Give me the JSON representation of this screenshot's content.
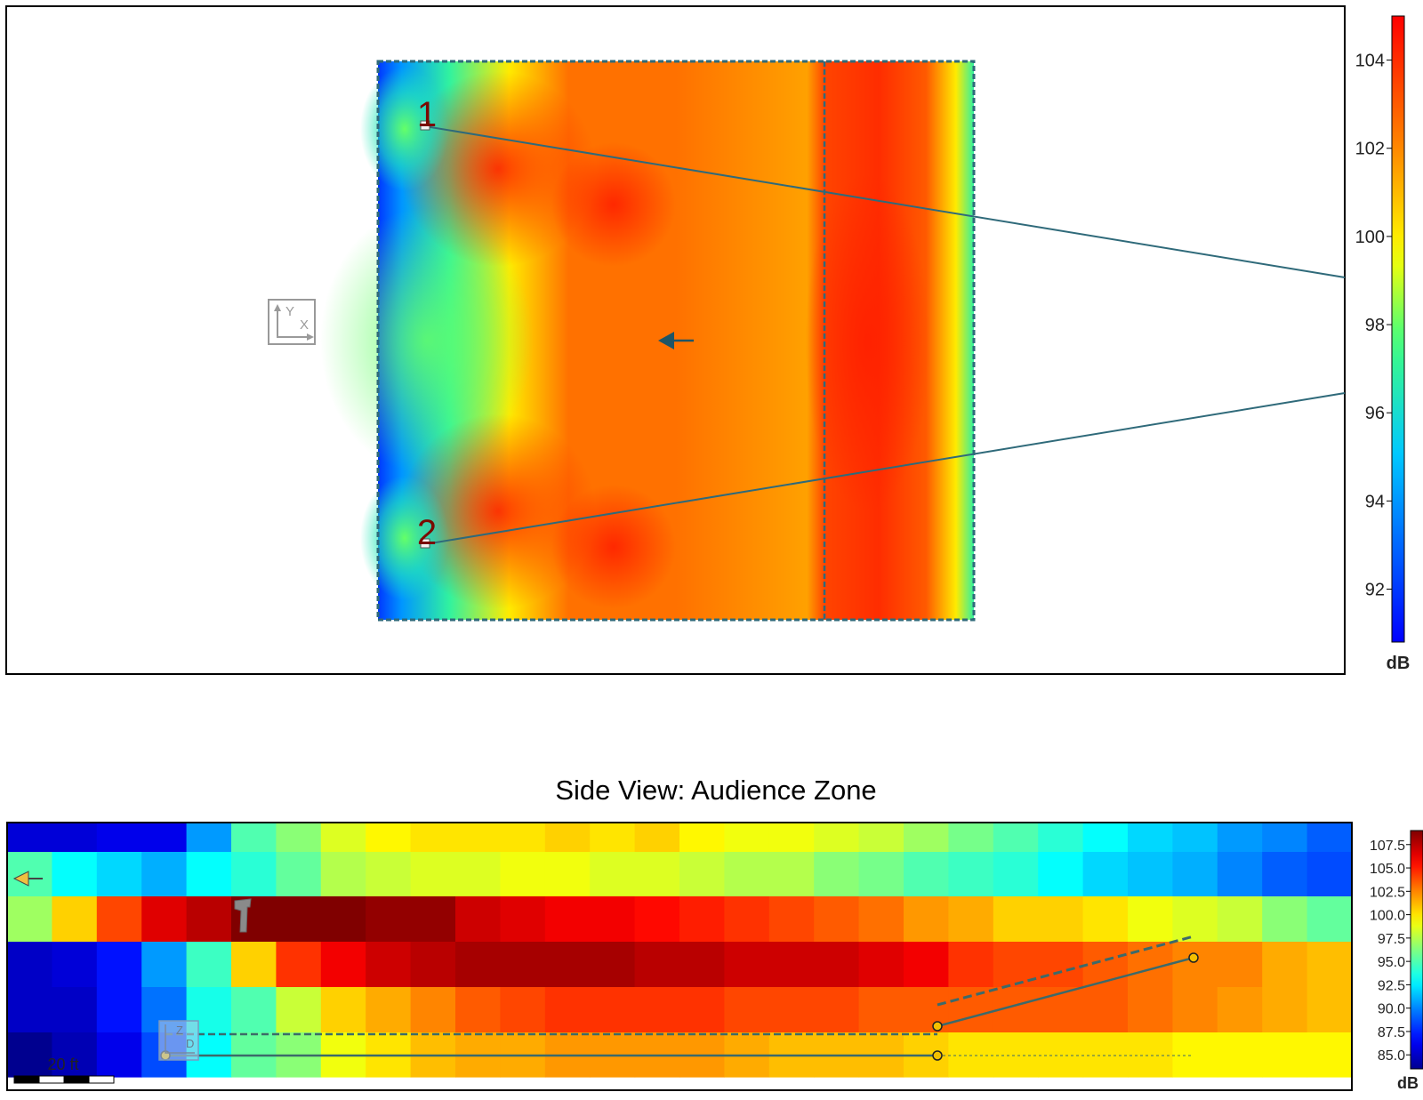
{
  "chart_data": [
    {
      "type": "heatmap",
      "view": "top",
      "title": "",
      "colorbar": {
        "label": "dB",
        "ticks": [
          104,
          102,
          100,
          98,
          96,
          94,
          92
        ],
        "range": [
          90.8,
          105.0
        ]
      },
      "speaker_labels": [
        "1",
        "2"
      ],
      "axis_indicator": [
        "Y",
        "X"
      ],
      "pattern": "Coverage map of two sources: cooler values along the left edge and near the sources, warm 100–104 dB across the center and right zones, a dashed zone divider, and a sharp roll-off to ~96 dB at the right edge."
    },
    {
      "type": "heatmap",
      "view": "side",
      "title": "Side View: Audience Zone",
      "colorbar": {
        "label": "dB",
        "ticks": [
          107.5,
          105.0,
          102.5,
          100.0,
          97.5,
          95.0,
          92.5,
          90.0,
          87.5,
          85.0
        ],
        "range": [
          83.5,
          109.0
        ]
      },
      "axis_indicator": [
        "Z",
        "D"
      ],
      "scale_bar": "20 ft",
      "grid_rows": 6,
      "grid_cols": 30,
      "values": [
        [
          85.5,
          85.5,
          86.0,
          86.0,
          90.5,
          95.0,
          96.5,
          98.5,
          99.5,
          100.0,
          100.0,
          100.0,
          100.5,
          100.0,
          100.5,
          99.5,
          99.0,
          99.0,
          98.5,
          98.0,
          97.0,
          96.0,
          95.0,
          94.0,
          93.0,
          92.0,
          91.5,
          90.5,
          90.0,
          89.0
        ],
        [
          95.0,
          93.0,
          92.0,
          91.0,
          93.0,
          94.0,
          95.5,
          97.5,
          98.0,
          98.5,
          98.5,
          99.0,
          99.0,
          98.5,
          98.5,
          98.0,
          97.5,
          97.5,
          96.5,
          96.0,
          95.0,
          94.5,
          94.0,
          93.0,
          92.0,
          91.5,
          91.0,
          90.0,
          89.0,
          88.5
        ],
        [
          97.0,
          100.5,
          104.0,
          106.5,
          107.5,
          109.0,
          109.0,
          109.0,
          108.5,
          108.5,
          107.0,
          106.5,
          106.0,
          106.0,
          105.5,
          105.0,
          104.5,
          104.0,
          103.5,
          103.0,
          102.0,
          101.5,
          100.5,
          100.5,
          100.0,
          99.0,
          98.5,
          98.0,
          96.5,
          95.5
        ],
        [
          85.0,
          85.5,
          87.0,
          90.5,
          94.5,
          100.5,
          104.5,
          106.0,
          107.0,
          107.5,
          108.0,
          108.0,
          108.0,
          108.0,
          107.5,
          107.5,
          107.0,
          107.0,
          107.0,
          106.5,
          106.0,
          104.5,
          104.0,
          104.0,
          103.5,
          103.0,
          102.5,
          102.5,
          101.5,
          101.0
        ],
        [
          85.0,
          85.0,
          87.0,
          89.5,
          93.5,
          95.0,
          98.0,
          100.5,
          101.5,
          102.5,
          103.5,
          104.0,
          104.5,
          104.5,
          104.5,
          104.5,
          104.0,
          104.0,
          104.0,
          103.5,
          103.5,
          103.5,
          103.5,
          103.5,
          103.5,
          103.0,
          102.5,
          102.0,
          101.5,
          101.0
        ],
        [
          83.5,
          84.5,
          86.0,
          88.5,
          93.0,
          95.5,
          96.5,
          99.0,
          100.0,
          101.0,
          101.5,
          101.5,
          102.0,
          102.0,
          102.0,
          102.0,
          101.5,
          101.0,
          101.0,
          101.0,
          100.5,
          100.0,
          100.0,
          100.0,
          100.0,
          100.0,
          99.5,
          99.5,
          99.5,
          99.5
        ]
      ]
    }
  ]
}
